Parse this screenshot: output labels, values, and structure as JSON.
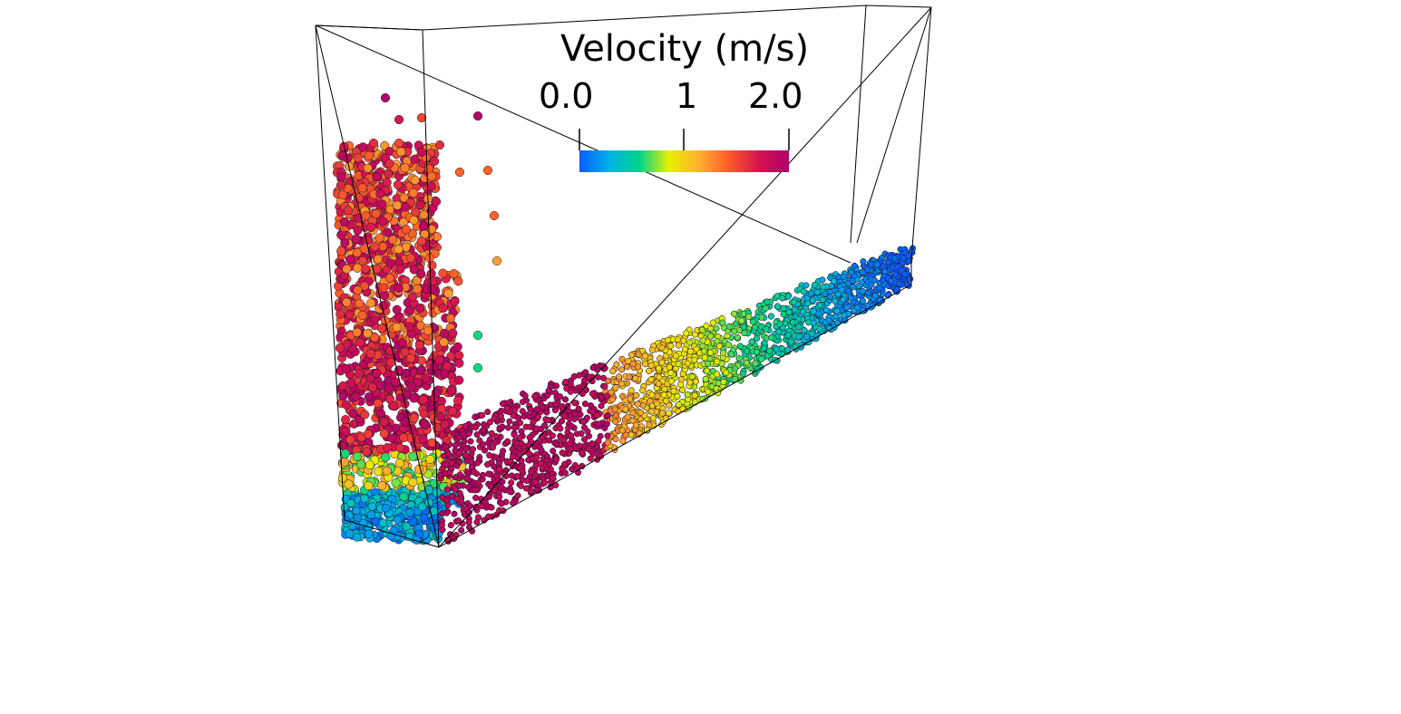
{
  "legend": {
    "title": "Velocity (m/s)",
    "ticks": {
      "min": "0.0",
      "mid": "1",
      "max": "2.0"
    },
    "range": [
      0.0,
      2.0
    ],
    "colormap": [
      "#0a5cff",
      "#00b3e6",
      "#00d48a",
      "#e8f000",
      "#ffb030",
      "#ff5a2a",
      "#d4134f",
      "#b0006a"
    ]
  },
  "scene": {
    "background": "#ffffff",
    "wireframe_color": "#000000",
    "particle_outline": "#1a1a1a"
  }
}
